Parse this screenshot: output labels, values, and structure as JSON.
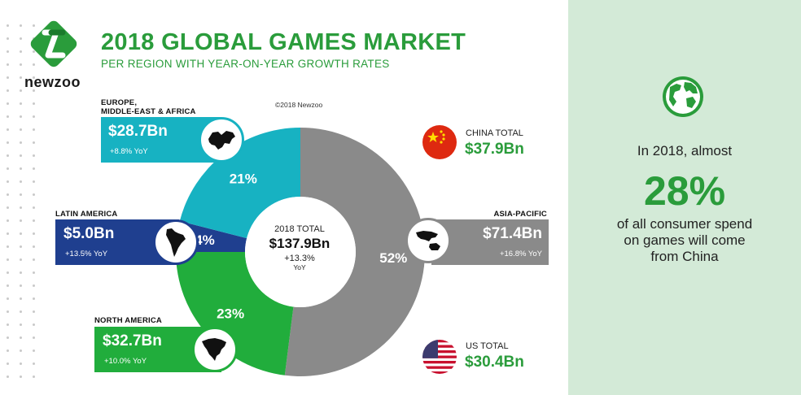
{
  "header": {
    "logo_text": "newzoo",
    "title": "2018 GLOBAL GAMES MARKET",
    "subtitle": "PER REGION WITH YEAR-ON-YEAR GROWTH RATES",
    "copyright": "©2018 Newzoo"
  },
  "center": {
    "label": "2018 TOTAL",
    "value": "$137.9Bn",
    "growth": "+13.3%",
    "growth_unit": "YoY"
  },
  "regions": {
    "emea": {
      "name_line1": "EUROPE,",
      "name_line2": "MIDDLE-EAST & AFRICA",
      "value": "$28.7Bn",
      "yoy": "+8.8% YoY",
      "pct": "21%"
    },
    "latam": {
      "name": "LATIN AMERICA",
      "value": "$5.0Bn",
      "yoy": "+13.5% YoY",
      "pct": "4%"
    },
    "na": {
      "name": "NORTH AMERICA",
      "value": "$32.7Bn",
      "yoy": "+10.0% YoY",
      "pct": "23%"
    },
    "apac": {
      "name": "ASIA-PACIFIC",
      "value": "$71.4Bn",
      "yoy": "+16.8% YoY",
      "pct": "52%"
    }
  },
  "highlights": {
    "china": {
      "caption": "CHINA TOTAL",
      "value": "$37.9Bn"
    },
    "us": {
      "caption": "US TOTAL",
      "value": "$30.4Bn"
    }
  },
  "panel": {
    "line1": "In 2018, almost",
    "big": "28%",
    "line2": "of all consumer spend",
    "line3": "on games will come",
    "line4": "from China"
  },
  "colors": {
    "green": "#2a9c3b",
    "teal": "#17b2c2",
    "navy": "#1f3f8f",
    "slice_green": "#21ad3c",
    "grey": "#8a8a8a",
    "panel_bg": "#d3ead7"
  },
  "icons": {
    "logo": "newzoo-logo-icon",
    "globe": "globe-icon",
    "china_flag": "china-flag-icon",
    "us_flag": "us-flag-icon"
  },
  "chart_data": {
    "type": "pie",
    "title": "2018 GLOBAL GAMES MARKET",
    "subtitle": "PER REGION WITH YEAR-ON-YEAR GROWTH RATES",
    "categories": [
      "ASIA-PACIFIC",
      "NORTH AMERICA",
      "LATIN AMERICA",
      "EUROPE, MIDDLE-EAST & AFRICA"
    ],
    "values": [
      52,
      23,
      4,
      21
    ],
    "revenue_bn": [
      71.4,
      32.7,
      5.0,
      28.7
    ],
    "yoy_growth_pct": [
      16.8,
      10.0,
      13.5,
      8.8
    ],
    "total_bn": 137.9,
    "total_growth_pct": 13.3,
    "colors": [
      "#8a8a8a",
      "#21ad3c",
      "#1f3f8f",
      "#17b2c2"
    ]
  }
}
